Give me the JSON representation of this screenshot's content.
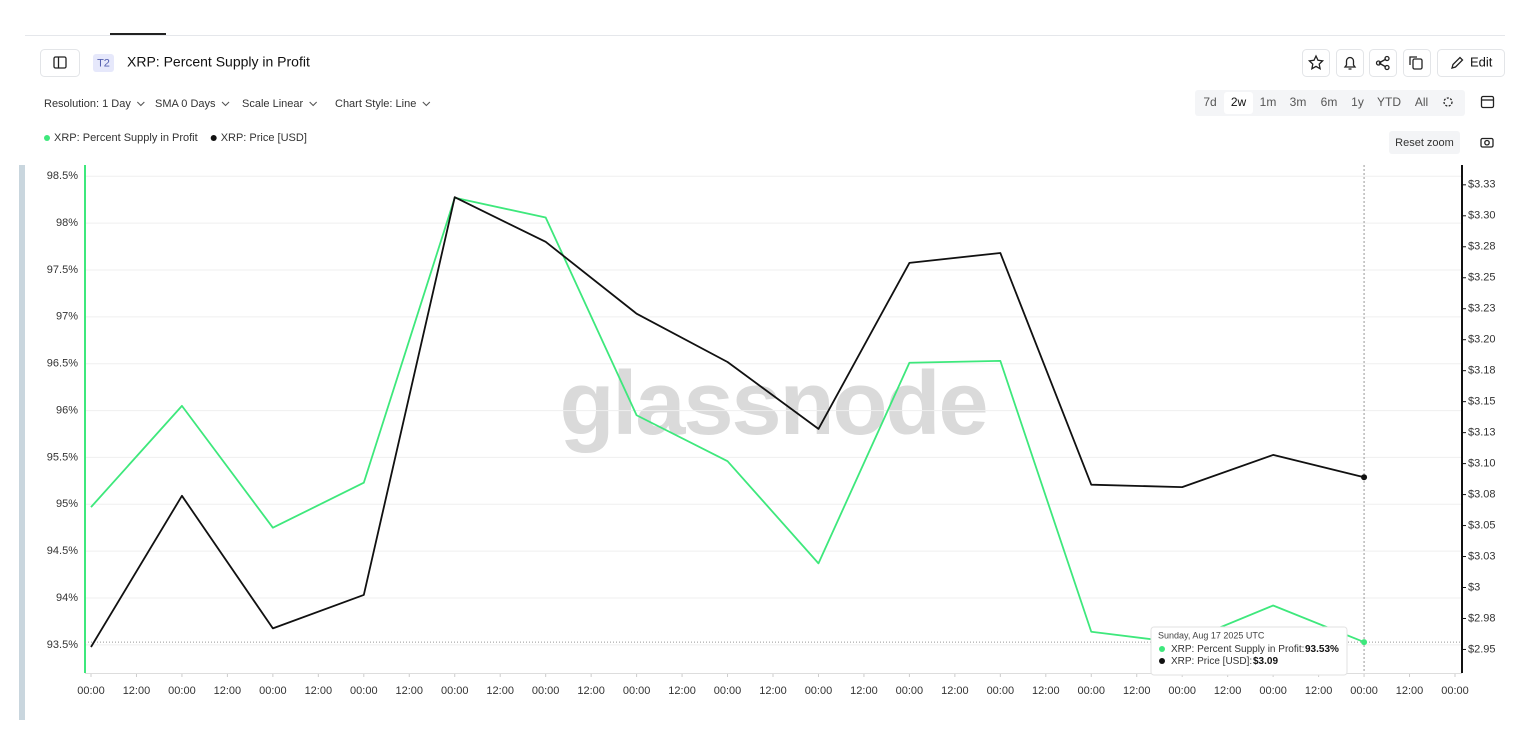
{
  "toolbar": {
    "badge": "T2",
    "edit": "Edit",
    "dropdowns": [
      "Resolution: 1 Day",
      "SMA 0 Days",
      "Scale Linear",
      "Chart Style: Line"
    ],
    "ranges": [
      "7d",
      "2w",
      "1m",
      "3m",
      "6m",
      "1y",
      "YTD",
      "All"
    ],
    "reset_zoom": "Reset zoom",
    "watermark": "glassnode"
  },
  "tooltip": {
    "date": "Sunday, Aug 17 2025 UTC",
    "items": [
      {
        "label": "XRP: Percent Supply in Profit:",
        "value": "93.53%"
      },
      {
        "label": "XRP: Price [USD]:",
        "value": "$3.09"
      }
    ]
  },
  "chart_data": {
    "type": "line",
    "title": "XRP: Percent Supply in Profit",
    "x": [
      0,
      24,
      48,
      72,
      96,
      120,
      144,
      168,
      192,
      216,
      240,
      264,
      288,
      312,
      336
    ],
    "series": [
      {
        "name": "XRP: Percent Supply in Profit",
        "color": "#3ee87c",
        "axis": "y",
        "values": [
          94.97,
          96.05,
          94.75,
          95.23,
          98.27,
          98.06,
          95.95,
          95.46,
          94.37,
          96.51,
          96.53,
          93.64,
          93.52,
          93.92,
          93.53
        ]
      },
      {
        "name": "XRP: Price [USD]",
        "color": "#111111",
        "axis": "y2",
        "values": [
          2.952,
          3.074,
          2.967,
          2.994,
          3.315,
          3.279,
          3.221,
          3.182,
          3.128,
          3.262,
          3.27,
          3.083,
          3.081,
          3.107,
          3.089
        ]
      }
    ],
    "xlim": [
      0,
      360
    ],
    "xticks": [
      {
        "value": 0,
        "label": "00:00"
      },
      {
        "value": 12,
        "label": "12:00"
      },
      {
        "value": 24,
        "label": "00:00"
      },
      {
        "value": 36,
        "label": "12:00"
      },
      {
        "value": 48,
        "label": "00:00"
      },
      {
        "value": 60,
        "label": "12:00"
      },
      {
        "value": 72,
        "label": "00:00"
      },
      {
        "value": 84,
        "label": "12:00"
      },
      {
        "value": 96,
        "label": "00:00"
      },
      {
        "value": 108,
        "label": "12:00"
      },
      {
        "value": 120,
        "label": "00:00"
      },
      {
        "value": 132,
        "label": "12:00"
      },
      {
        "value": 144,
        "label": "00:00"
      },
      {
        "value": 156,
        "label": "12:00"
      },
      {
        "value": 168,
        "label": "00:00"
      },
      {
        "value": 180,
        "label": "12:00"
      },
      {
        "value": 192,
        "label": "00:00"
      },
      {
        "value": 204,
        "label": "12:00"
      },
      {
        "value": 216,
        "label": "00:00"
      },
      {
        "value": 228,
        "label": "12:00"
      },
      {
        "value": 240,
        "label": "00:00"
      },
      {
        "value": 252,
        "label": "12:00"
      },
      {
        "value": 264,
        "label": "00:00"
      },
      {
        "value": 276,
        "label": "12:00"
      },
      {
        "value": 288,
        "label": "00:00"
      },
      {
        "value": 300,
        "label": "12:00"
      },
      {
        "value": 312,
        "label": "00:00"
      },
      {
        "value": 324,
        "label": "12:00"
      },
      {
        "value": 336,
        "label": "00:00"
      },
      {
        "value": 348,
        "label": "12:00"
      },
      {
        "value": 360,
        "label": "00:00"
      }
    ],
    "ylim": [
      93.2,
      98.62
    ],
    "yticks": [
      {
        "value": 93.5,
        "label": "93.5%"
      },
      {
        "value": 94,
        "label": "94%"
      },
      {
        "value": 94.5,
        "label": "94.5%"
      },
      {
        "value": 95,
        "label": "95%"
      },
      {
        "value": 95.5,
        "label": "95.5%"
      },
      {
        "value": 96,
        "label": "96%"
      },
      {
        "value": 96.5,
        "label": "96.5%"
      },
      {
        "value": 97,
        "label": "97%"
      },
      {
        "value": 97.5,
        "label": "97.5%"
      },
      {
        "value": 98,
        "label": "98%"
      },
      {
        "value": 98.5,
        "label": "98.5%"
      }
    ],
    "y2lim": [
      2.931,
      3.341
    ],
    "y2ticks": [
      {
        "value": 2.95,
        "label": "$2.95"
      },
      {
        "value": 2.975,
        "label": "$2.98"
      },
      {
        "value": 3,
        "label": "$3"
      },
      {
        "value": 3.025,
        "label": "$3.03"
      },
      {
        "value": 3.05,
        "label": "$3.05"
      },
      {
        "value": 3.075,
        "label": "$3.08"
      },
      {
        "value": 3.1,
        "label": "$3.10"
      },
      {
        "value": 3.125,
        "label": "$3.13"
      },
      {
        "value": 3.15,
        "label": "$3.15"
      },
      {
        "value": 3.175,
        "label": "$3.18"
      },
      {
        "value": 3.2,
        "label": "$3.20"
      },
      {
        "value": 3.225,
        "label": "$3.23"
      },
      {
        "value": 3.25,
        "label": "$3.25"
      },
      {
        "value": 3.275,
        "label": "$3.28"
      },
      {
        "value": 3.3,
        "label": "$3.30"
      },
      {
        "value": 3.325,
        "label": "$3.33"
      }
    ],
    "grid": true
  }
}
